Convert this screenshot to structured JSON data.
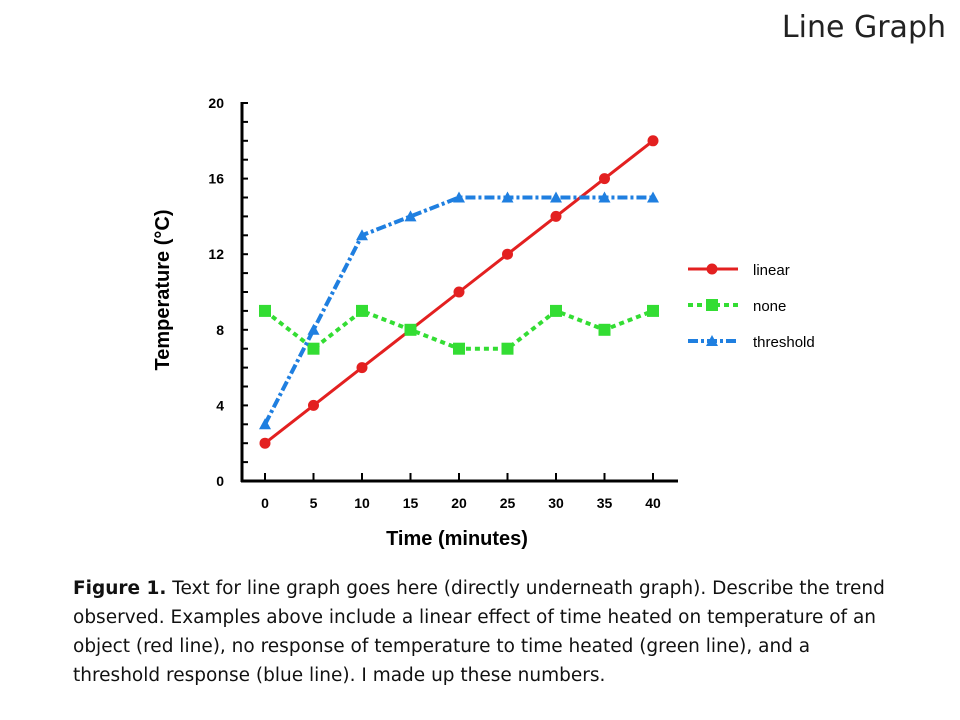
{
  "slide_title": "Line Graph",
  "chart_data": {
    "type": "line",
    "title": "",
    "xlabel": "Time (minutes)",
    "ylabel": "Temperature (°C)",
    "x": [
      0,
      5,
      10,
      15,
      20,
      25,
      30,
      35,
      40
    ],
    "xlim": [
      0,
      40
    ],
    "ylim": [
      0,
      20
    ],
    "xticks": [
      0,
      5,
      10,
      15,
      20,
      25,
      30,
      35,
      40
    ],
    "yticks": [
      0,
      4,
      8,
      12,
      16,
      20
    ],
    "y_minor_tick_step": 1,
    "grid": false,
    "legend_position": "right",
    "series": [
      {
        "name": "linear",
        "values": [
          2,
          4,
          6,
          8,
          10,
          12,
          14,
          16,
          18
        ],
        "color": "#e32020",
        "marker": "circle",
        "dash": "solid"
      },
      {
        "name": "none",
        "values": [
          9,
          7,
          9,
          8,
          7,
          7,
          9,
          8,
          9
        ],
        "color": "#33dd33",
        "marker": "square",
        "dash": "dotted"
      },
      {
        "name": "threshold",
        "values": [
          3,
          8,
          13,
          14,
          15,
          15,
          15,
          15,
          15
        ],
        "color": "#1f7fe0",
        "marker": "triangle",
        "dash": "dash-dot"
      }
    ]
  },
  "caption": {
    "label": "Figure 1.",
    "text": " Text for line graph goes here (directly underneath graph).  Describe the trend observed.  Examples above include a linear effect of time heated on temperature of an object (red line), no response of temperature to time  heated (green line), and a threshold response (blue line).  I made up these numbers."
  }
}
